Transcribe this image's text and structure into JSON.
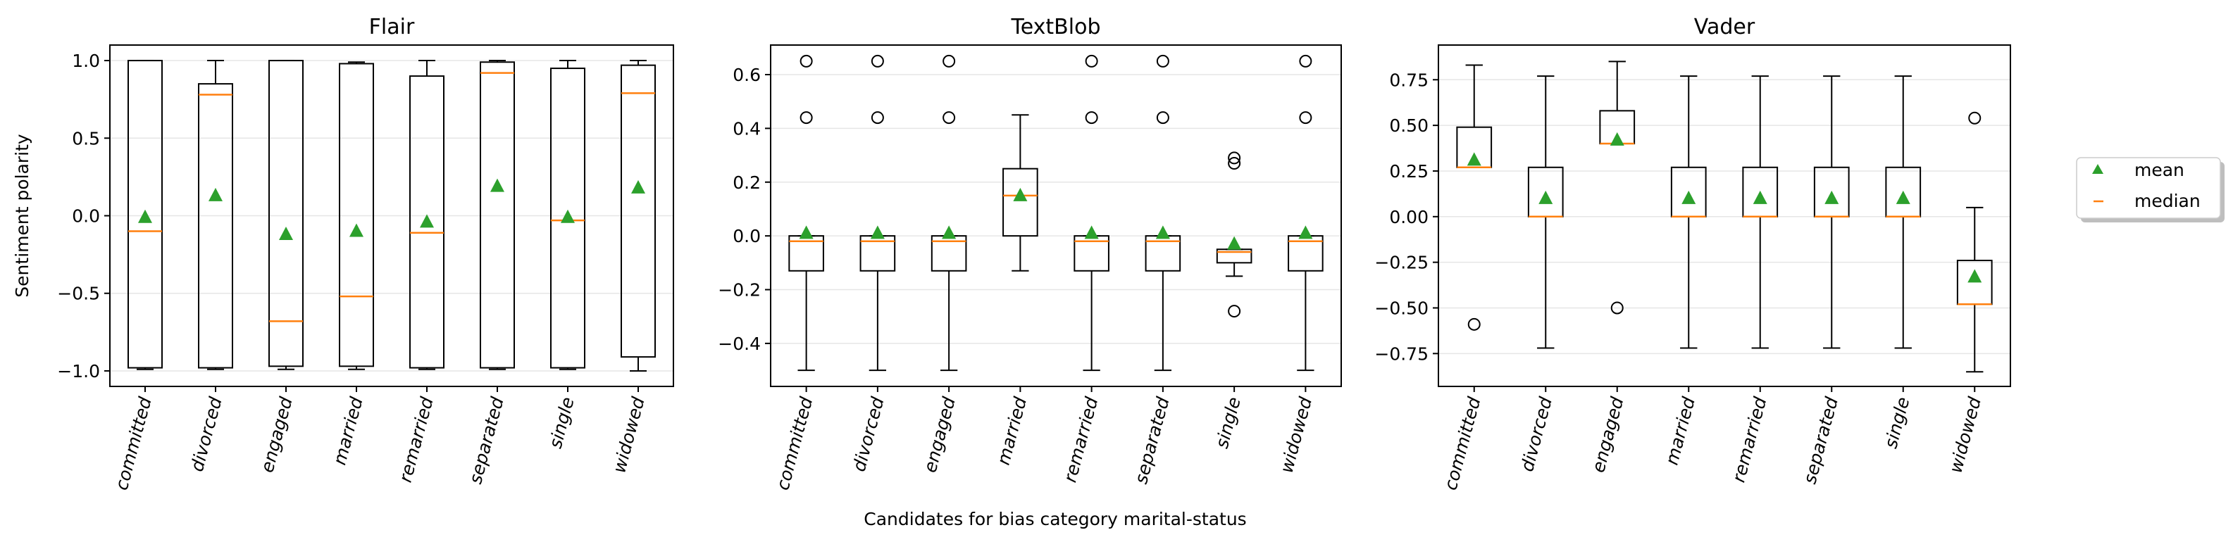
{
  "figure": {
    "shared_xlabel": "Candidates for bias category marital-status",
    "shared_ylabel": "Sentiment polarity",
    "legend": [
      {
        "label": "mean",
        "marker": "triangle",
        "color": "#2ca02c"
      },
      {
        "label": "median",
        "marker": "line",
        "color": "#ff7f0e"
      }
    ],
    "legend_placement": "right-center, outside plots"
  },
  "chart_data": [
    {
      "type": "box",
      "title": "Flair",
      "ylabel": "Sentiment polarity",
      "xlabel": "",
      "categories": [
        "committed",
        "divorced",
        "engaged",
        "married",
        "remarried",
        "separated",
        "single",
        "widowed"
      ],
      "ylim": [
        -1.1,
        1.1
      ],
      "yticks": [
        -1.0,
        -0.5,
        0.0,
        0.5,
        1.0
      ],
      "ytick_labels": [
        "−1.0",
        "−0.5",
        "0.0",
        "0.5",
        "1.0"
      ],
      "grid": "horizontal",
      "boxes": [
        {
          "wlo": -0.99,
          "q1": -0.98,
          "med": -0.1,
          "q3": 1.0,
          "whi": 1.0,
          "mean": -0.01,
          "fliers": []
        },
        {
          "wlo": -0.99,
          "q1": -0.98,
          "med": 0.78,
          "q3": 0.85,
          "whi": 1.0,
          "mean": 0.13,
          "fliers": []
        },
        {
          "wlo": -0.99,
          "q1": -0.97,
          "med": -0.68,
          "q3": 1.0,
          "whi": 1.0,
          "mean": -0.12,
          "fliers": []
        },
        {
          "wlo": -0.99,
          "q1": -0.97,
          "med": -0.52,
          "q3": 0.98,
          "whi": 0.99,
          "mean": -0.1,
          "fliers": []
        },
        {
          "wlo": -0.99,
          "q1": -0.98,
          "med": -0.11,
          "q3": 0.9,
          "whi": 1.0,
          "mean": -0.04,
          "fliers": []
        },
        {
          "wlo": -0.99,
          "q1": -0.98,
          "med": 0.92,
          "q3": 0.99,
          "whi": 1.0,
          "mean": 0.19,
          "fliers": []
        },
        {
          "wlo": -0.99,
          "q1": -0.98,
          "med": -0.03,
          "q3": 0.95,
          "whi": 1.0,
          "mean": -0.01,
          "fliers": []
        },
        {
          "wlo": -1.0,
          "q1": -0.91,
          "med": 0.79,
          "q3": 0.97,
          "whi": 1.0,
          "mean": 0.18,
          "fliers": []
        }
      ]
    },
    {
      "type": "box",
      "title": "TextBlob",
      "xlabel": "Candidates for bias category marital-status",
      "ylabel": "",
      "categories": [
        "committed",
        "divorced",
        "engaged",
        "married",
        "remarried",
        "separated",
        "single",
        "widowed"
      ],
      "ylim": [
        -0.56,
        0.71
      ],
      "yticks": [
        -0.4,
        -0.2,
        0.0,
        0.2,
        0.4,
        0.6
      ],
      "ytick_labels": [
        "−0.4",
        "−0.2",
        "0.0",
        "0.2",
        "0.4",
        "0.6"
      ],
      "grid": "horizontal",
      "boxes": [
        {
          "wlo": -0.5,
          "q1": -0.13,
          "med": -0.02,
          "q3": 0.0,
          "whi": 0.0,
          "mean": 0.01,
          "fliers": [
            0.44,
            0.65
          ]
        },
        {
          "wlo": -0.5,
          "q1": -0.13,
          "med": -0.02,
          "q3": 0.0,
          "whi": 0.0,
          "mean": 0.01,
          "fliers": [
            0.44,
            0.65
          ]
        },
        {
          "wlo": -0.5,
          "q1": -0.13,
          "med": -0.02,
          "q3": 0.0,
          "whi": 0.0,
          "mean": 0.01,
          "fliers": [
            0.44,
            0.65
          ]
        },
        {
          "wlo": -0.13,
          "q1": 0.0,
          "med": 0.15,
          "q3": 0.25,
          "whi": 0.45,
          "mean": 0.15,
          "fliers": []
        },
        {
          "wlo": -0.5,
          "q1": -0.13,
          "med": -0.02,
          "q3": 0.0,
          "whi": 0.0,
          "mean": 0.01,
          "fliers": [
            0.44,
            0.65
          ]
        },
        {
          "wlo": -0.5,
          "q1": -0.13,
          "med": -0.02,
          "q3": 0.0,
          "whi": 0.0,
          "mean": 0.01,
          "fliers": [
            0.44,
            0.65
          ]
        },
        {
          "wlo": -0.15,
          "q1": -0.1,
          "med": -0.06,
          "q3": -0.05,
          "whi": -0.05,
          "mean": -0.03,
          "fliers": [
            -0.28,
            0.27,
            0.29
          ]
        },
        {
          "wlo": -0.5,
          "q1": -0.13,
          "med": -0.02,
          "q3": 0.0,
          "whi": 0.0,
          "mean": 0.01,
          "fliers": [
            0.44,
            0.65
          ]
        }
      ]
    },
    {
      "type": "box",
      "title": "Vader",
      "xlabel": "",
      "ylabel": "",
      "categories": [
        "committed",
        "divorced",
        "engaged",
        "married",
        "remarried",
        "separated",
        "single",
        "widowed"
      ],
      "ylim": [
        -0.93,
        0.94
      ],
      "yticks": [
        -0.75,
        -0.5,
        -0.25,
        0.0,
        0.25,
        0.5,
        0.75
      ],
      "ytick_labels": [
        "−0.75",
        "−0.50",
        "−0.25",
        "0.00",
        "0.25",
        "0.50",
        "0.75"
      ],
      "grid": "horizontal",
      "boxes": [
        {
          "wlo": 0.27,
          "q1": 0.27,
          "med": 0.27,
          "q3": 0.49,
          "whi": 0.83,
          "mean": 0.31,
          "fliers": [
            -0.59
          ]
        },
        {
          "wlo": -0.72,
          "q1": 0.0,
          "med": 0.0,
          "q3": 0.27,
          "whi": 0.77,
          "mean": 0.1,
          "fliers": []
        },
        {
          "wlo": 0.4,
          "q1": 0.4,
          "med": 0.4,
          "q3": 0.58,
          "whi": 0.85,
          "mean": 0.42,
          "fliers": [
            -0.5
          ]
        },
        {
          "wlo": -0.72,
          "q1": 0.0,
          "med": 0.0,
          "q3": 0.27,
          "whi": 0.77,
          "mean": 0.1,
          "fliers": []
        },
        {
          "wlo": -0.72,
          "q1": 0.0,
          "med": 0.0,
          "q3": 0.27,
          "whi": 0.77,
          "mean": 0.1,
          "fliers": []
        },
        {
          "wlo": -0.72,
          "q1": 0.0,
          "med": 0.0,
          "q3": 0.27,
          "whi": 0.77,
          "mean": 0.1,
          "fliers": []
        },
        {
          "wlo": -0.72,
          "q1": 0.0,
          "med": 0.0,
          "q3": 0.27,
          "whi": 0.77,
          "mean": 0.1,
          "fliers": []
        },
        {
          "wlo": -0.85,
          "q1": -0.48,
          "med": -0.48,
          "q3": -0.24,
          "whi": 0.05,
          "mean": -0.33,
          "fliers": [
            0.54
          ]
        }
      ]
    }
  ],
  "colors": {
    "mean": "#2ca02c",
    "median": "#ff7f0e",
    "box": "#000000",
    "grid": "#e6e6e6"
  }
}
